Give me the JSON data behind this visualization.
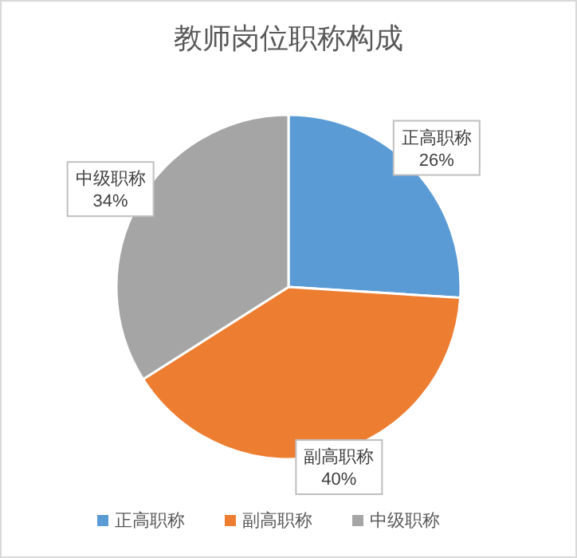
{
  "chart_data": {
    "type": "pie",
    "title": "教师岗位职称构成",
    "categories": [
      "正高职称",
      "副高职称",
      "中级职称"
    ],
    "values": [
      26,
      40,
      34
    ],
    "colors": [
      "#5b9bd5",
      "#ed7d31",
      "#a5a5a5"
    ],
    "value_labels": [
      "26%",
      "40%",
      "34%"
    ],
    "legend": "bottom"
  }
}
